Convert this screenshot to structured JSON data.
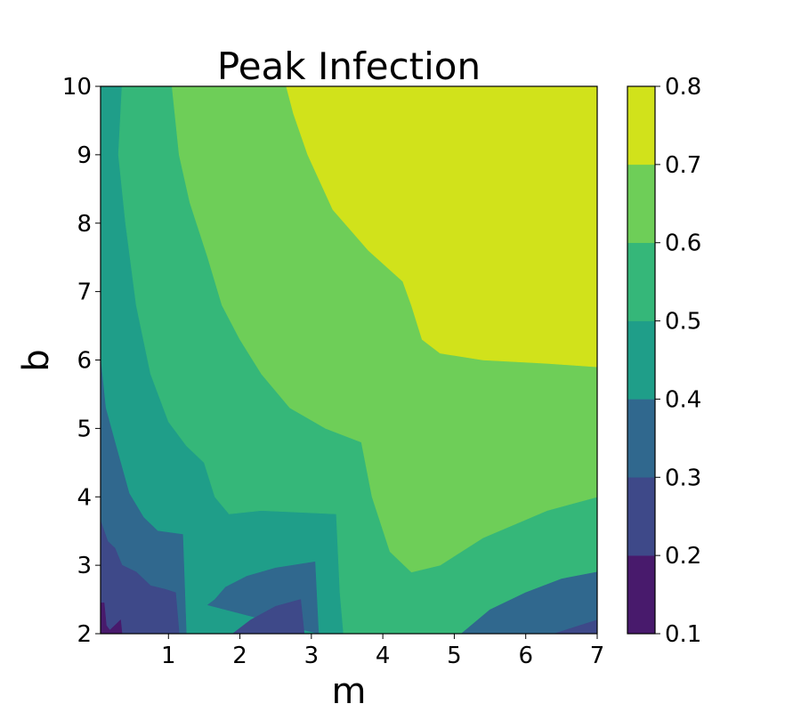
{
  "chart_data": {
    "type": "contourf",
    "title": "Peak Infection",
    "xlabel": "m",
    "ylabel": "b",
    "xlim": [
      0.05,
      7
    ],
    "ylim": [
      2,
      10
    ],
    "x_ticks": [
      1,
      2,
      3,
      4,
      5,
      6,
      7
    ],
    "x_tick_labels": [
      "1",
      "2",
      "3",
      "4",
      "5",
      "6",
      "7"
    ],
    "y_ticks": [
      2,
      3,
      4,
      5,
      6,
      7,
      8,
      9,
      10
    ],
    "y_tick_labels": [
      "2",
      "3",
      "4",
      "5",
      "6",
      "7",
      "8",
      "9",
      "10"
    ],
    "colorbar": {
      "levels": [
        0.1,
        0.2,
        0.3,
        0.4,
        0.5,
        0.6,
        0.7,
        0.8
      ],
      "tick_labels": [
        "0.1",
        "0.2",
        "0.3",
        "0.4",
        "0.5",
        "0.6",
        "0.7",
        "0.8"
      ],
      "colors": [
        "#481a6c",
        "#3e4989",
        "#30688e",
        "#1f9e89",
        "#35b779",
        "#6ece58",
        "#d1e21b"
      ]
    },
    "regions": [
      {
        "name": "peak-0.4-0.5",
        "level": [
          0.4,
          0.5
        ],
        "color": "#1f9e89",
        "points": [
          [
            0.05,
            2
          ],
          [
            7,
            2
          ],
          [
            7,
            10
          ],
          [
            0.05,
            10
          ]
        ]
      },
      {
        "name": "peak-0.5-0.6",
        "level": [
          0.5,
          0.6
        ],
        "color": "#35b779",
        "points": [
          [
            0.35,
            10
          ],
          [
            7,
            10
          ],
          [
            7,
            2
          ],
          [
            3.45,
            2
          ],
          [
            3.4,
            2.6
          ],
          [
            3.35,
            3.75
          ],
          [
            2.3,
            3.8
          ],
          [
            1.85,
            3.75
          ],
          [
            1.65,
            4
          ],
          [
            1.5,
            4.5
          ],
          [
            1.25,
            4.75
          ],
          [
            1.0,
            5.1
          ],
          [
            0.75,
            5.8
          ],
          [
            0.55,
            6.8
          ],
          [
            0.4,
            8
          ],
          [
            0.3,
            9
          ]
        ]
      },
      {
        "name": "peak-0.6-0.7",
        "level": [
          0.6,
          0.7
        ],
        "color": "#6ece58",
        "points": [
          [
            1.05,
            10
          ],
          [
            7,
            10
          ],
          [
            7,
            4
          ],
          [
            6.3,
            3.8
          ],
          [
            5.4,
            3.4
          ],
          [
            4.8,
            3
          ],
          [
            4.4,
            2.9
          ],
          [
            4.1,
            3.2
          ],
          [
            3.85,
            4
          ],
          [
            3.7,
            4.8
          ],
          [
            3.2,
            5
          ],
          [
            2.7,
            5.3
          ],
          [
            2.3,
            5.8
          ],
          [
            2.0,
            6.3
          ],
          [
            1.75,
            6.8
          ],
          [
            1.55,
            7.5
          ],
          [
            1.3,
            8.3
          ],
          [
            1.15,
            9
          ]
        ]
      },
      {
        "name": "peak-0.7-0.8",
        "level": [
          0.7,
          0.8
        ],
        "color": "#d1e21b",
        "points": [
          [
            2.65,
            10
          ],
          [
            7,
            10
          ],
          [
            7,
            5.9
          ],
          [
            6.3,
            5.95
          ],
          [
            5.4,
            6
          ],
          [
            4.8,
            6.1
          ],
          [
            4.55,
            6.3
          ],
          [
            4.4,
            6.8
          ],
          [
            4.28,
            7.15
          ],
          [
            3.8,
            7.6
          ],
          [
            3.3,
            8.2
          ],
          [
            2.95,
            9
          ],
          [
            2.75,
            9.6
          ]
        ]
      },
      {
        "name": "peak-0.3-0.4-left",
        "level": [
          0.3,
          0.4
        ],
        "color": "#30688e",
        "points": [
          [
            0.05,
            6
          ],
          [
            0.12,
            5.3
          ],
          [
            0.25,
            4.8
          ],
          [
            0.45,
            4.05
          ],
          [
            0.65,
            3.7
          ],
          [
            0.85,
            3.5
          ],
          [
            1.2,
            3.45
          ],
          [
            1.25,
            2
          ],
          [
            0.05,
            2
          ]
        ]
      },
      {
        "name": "peak-0.3-0.4-mid",
        "level": [
          0.3,
          0.4
        ],
        "color": "#30688e",
        "points": [
          [
            1.55,
            2.42
          ],
          [
            1.65,
            2.5
          ],
          [
            1.8,
            2.68
          ],
          [
            2.1,
            2.84
          ],
          [
            2.5,
            2.96
          ],
          [
            3.05,
            3.05
          ],
          [
            3.1,
            2
          ]
        ]
      },
      {
        "name": "peak-0.3-0.4-right",
        "level": [
          0.3,
          0.4
        ],
        "color": "#30688e",
        "points": [
          [
            5.1,
            2
          ],
          [
            5.5,
            2.35
          ],
          [
            6.0,
            2.6
          ],
          [
            6.5,
            2.8
          ],
          [
            7,
            2.9
          ],
          [
            7,
            2
          ]
        ]
      },
      {
        "name": "peak-0.2-0.3-left",
        "level": [
          0.2,
          0.3
        ],
        "color": "#3e4989",
        "points": [
          [
            0.05,
            3.65
          ],
          [
            0.15,
            3.35
          ],
          [
            0.25,
            3.25
          ],
          [
            0.35,
            3.0
          ],
          [
            0.55,
            2.9
          ],
          [
            0.75,
            2.7
          ],
          [
            0.95,
            2.65
          ],
          [
            1.1,
            2.6
          ],
          [
            1.15,
            2
          ],
          [
            0.05,
            2
          ]
        ]
      },
      {
        "name": "peak-0.2-0.3-mid",
        "level": [
          0.2,
          0.3
        ],
        "color": "#3e4989",
        "points": [
          [
            1.9,
            2
          ],
          [
            2.15,
            2.2
          ],
          [
            2.5,
            2.4
          ],
          [
            2.85,
            2.5
          ],
          [
            2.9,
            2
          ]
        ]
      },
      {
        "name": "peak-0.2-0.3-right",
        "level": [
          0.2,
          0.3
        ],
        "color": "#3e4989",
        "points": [
          [
            6.4,
            2
          ],
          [
            6.7,
            2.1
          ],
          [
            7,
            2.2
          ],
          [
            7,
            2
          ]
        ]
      },
      {
        "name": "peak-0.1-0.2",
        "level": [
          0.1,
          0.2
        ],
        "color": "#481a6c",
        "points": [
          [
            0.05,
            2.45
          ],
          [
            0.1,
            2.45
          ],
          [
            0.13,
            2.12
          ],
          [
            0.18,
            2.05
          ],
          [
            0.28,
            2.15
          ],
          [
            0.33,
            2.2
          ],
          [
            0.35,
            2
          ],
          [
            0.05,
            2
          ]
        ]
      }
    ]
  }
}
